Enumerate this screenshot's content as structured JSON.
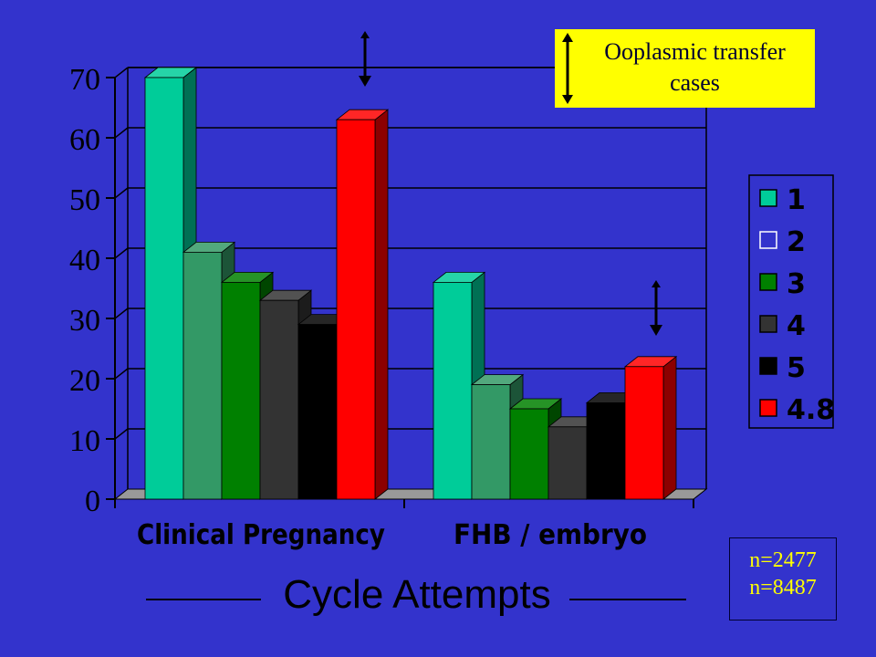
{
  "chart_data": {
    "type": "bar",
    "categories": [
      "Clinical Pregnancy",
      "FHB / embryo"
    ],
    "series": [
      {
        "name": "1",
        "values": [
          70,
          36
        ],
        "color": "#00cc99"
      },
      {
        "name": "2",
        "values": [
          41,
          19
        ],
        "color": "#339966"
      },
      {
        "name": "3",
        "values": [
          36,
          15
        ],
        "color": "#008000"
      },
      {
        "name": "4",
        "values": [
          33,
          12
        ],
        "color": "#333333"
      },
      {
        "name": "5",
        "values": [
          29,
          16
        ],
        "color": "#000000"
      },
      {
        "name": "4.8",
        "values": [
          63,
          22
        ],
        "color": "#ff0000"
      }
    ],
    "yticks": [
      0,
      10,
      20,
      30,
      40,
      50,
      60,
      70
    ],
    "ylim": [
      0,
      70
    ],
    "three_d": true,
    "grid": true,
    "legend_position": "right",
    "legend_labels": [
      "1",
      "2",
      "3",
      "4",
      "5",
      "4.8"
    ],
    "xlabel": "Cycle Attempts"
  },
  "callout": {
    "line1": "Ooplasmic transfer",
    "line2": "cases",
    "background": "#ffff00"
  },
  "counts": {
    "line1": "n=2477",
    "line2": "n=8487"
  },
  "colors": {
    "background": "#3333cc",
    "floor": "#999999",
    "tick_text": "#000000",
    "count_text": "#ffff00"
  }
}
